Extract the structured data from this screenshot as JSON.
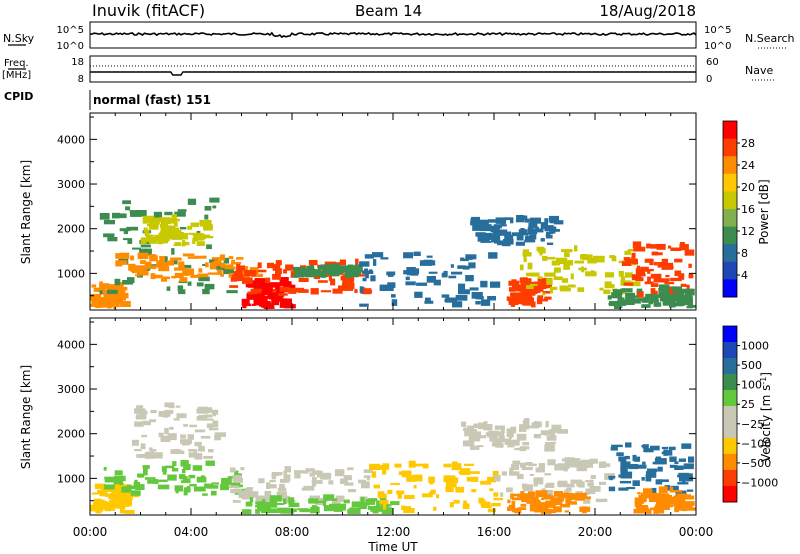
{
  "header": {
    "station": "Inuvik (fitACF)",
    "beam": "Beam 14",
    "date": "18/Aug/2018"
  },
  "noise_panel": {
    "left_label": "N.Sky",
    "left_ticks": [
      "10^5",
      "10^0"
    ],
    "right_ticks": [
      "10^5",
      "10^0"
    ],
    "right_label": "N.Search"
  },
  "freq_panel": {
    "left_label_top": "Freq.",
    "left_label_bottom": "[MHz]",
    "left_ticks": [
      "18",
      "8"
    ],
    "right_ticks": [
      "60",
      "0"
    ],
    "right_label": "Nave"
  },
  "cpid": {
    "label": "CPID",
    "value": "normal (fast) 151"
  },
  "chart_data": [
    {
      "type": "heatmap",
      "name": "power",
      "ylabel": "Slant Range [km]",
      "xlabel": "",
      "yticks": [
        "4000",
        "3000",
        "2000",
        "1000"
      ],
      "ylim": [
        180,
        4590
      ],
      "xlim": [
        0,
        24
      ],
      "colorbar": {
        "label": "Power [dB]",
        "ticks": [
          "28",
          "24",
          "20",
          "16",
          "12",
          "8",
          "4"
        ],
        "colors": [
          "#ff0000",
          "#ff3c00",
          "#ff8c00",
          "#ffc800",
          "#c8c800",
          "#80b050",
          "#3c8c50",
          "#286e9c",
          "#1e46b4",
          "#0000ff"
        ]
      },
      "regions": [
        {
          "t0": 0.0,
          "t1": 1.2,
          "r0": 200,
          "r1": 700,
          "c": "#ff8c00"
        },
        {
          "t0": 0.3,
          "t1": 5.5,
          "r0": 500,
          "r1": 2600,
          "c": "#3c8c50"
        },
        {
          "t0": 2.0,
          "t1": 4.5,
          "r0": 1600,
          "r1": 2200,
          "c": "#c8c800"
        },
        {
          "t0": 1.0,
          "t1": 6.5,
          "r0": 800,
          "r1": 1400,
          "c": "#ff8c00"
        },
        {
          "t0": 6.0,
          "t1": 7.8,
          "r0": 200,
          "r1": 800,
          "c": "#ff0000"
        },
        {
          "t0": 5.5,
          "t1": 10.8,
          "r0": 500,
          "r1": 1200,
          "c": "#ff3c00"
        },
        {
          "t0": 8.0,
          "t1": 10.5,
          "r0": 900,
          "r1": 1100,
          "c": "#3c8c50"
        },
        {
          "t0": 10.5,
          "t1": 16.0,
          "r0": 200,
          "r1": 1400,
          "c": "#286e9c"
        },
        {
          "t0": 15.0,
          "t1": 18.5,
          "r0": 1600,
          "r1": 2200,
          "c": "#286e9c"
        },
        {
          "t0": 16.5,
          "t1": 18.0,
          "r0": 200,
          "r1": 800,
          "c": "#ff3c00"
        },
        {
          "t0": 17.0,
          "t1": 21.5,
          "r0": 500,
          "r1": 1500,
          "c": "#c8c800"
        },
        {
          "t0": 21.0,
          "t1": 24.0,
          "r0": 400,
          "r1": 1600,
          "c": "#ff3c00"
        },
        {
          "t0": 20.5,
          "t1": 24.0,
          "r0": 200,
          "r1": 600,
          "c": "#3c8c50"
        }
      ]
    },
    {
      "type": "heatmap",
      "name": "velocity",
      "ylabel": "Slant Range [km]",
      "xlabel": "Time UT",
      "yticks": [
        "4000",
        "3000",
        "2000",
        "1000"
      ],
      "ylim": [
        180,
        4590
      ],
      "xlim": [
        0,
        24
      ],
      "xticks": [
        "00:00",
        "04:00",
        "08:00",
        "12:00",
        "16:00",
        "20:00",
        "00:00"
      ],
      "colorbar": {
        "label": "Velocity [m s",
        "label_sup": "-1",
        "label_close": "]",
        "ticks": [
          "1000",
          "500",
          "100",
          "25",
          "−25",
          "−100",
          "−500",
          "−1000"
        ],
        "colors": [
          "#0000ff",
          "#1e46b4",
          "#286e9c",
          "#3c8c50",
          "#64c83c",
          "#c8c8b4",
          "#c8c8b4",
          "#ffc800",
          "#ff8c00",
          "#ff3c00",
          "#ff0000"
        ]
      },
      "regions": [
        {
          "t0": 0.0,
          "t1": 1.5,
          "r0": 200,
          "r1": 800,
          "c": "#ffc800"
        },
        {
          "t0": 0.5,
          "t1": 6.0,
          "r0": 600,
          "r1": 1300,
          "c": "#64c83c"
        },
        {
          "t0": 1.5,
          "t1": 5.0,
          "r0": 1400,
          "r1": 2600,
          "c": "#c8c8b4"
        },
        {
          "t0": 5.5,
          "t1": 11.0,
          "r0": 400,
          "r1": 1200,
          "c": "#c8c8b4"
        },
        {
          "t0": 6.0,
          "t1": 12.0,
          "r0": 200,
          "r1": 500,
          "c": "#64c83c"
        },
        {
          "t0": 11.0,
          "t1": 16.0,
          "r0": 200,
          "r1": 1300,
          "c": "#ffc800"
        },
        {
          "t0": 14.5,
          "t1": 18.5,
          "r0": 1600,
          "r1": 2200,
          "c": "#c8c8b4"
        },
        {
          "t0": 16.0,
          "t1": 20.5,
          "r0": 400,
          "r1": 1400,
          "c": "#c8c8b4"
        },
        {
          "t0": 16.5,
          "t1": 19.5,
          "r0": 200,
          "r1": 600,
          "c": "#ff8c00"
        },
        {
          "t0": 20.5,
          "t1": 23.8,
          "r0": 500,
          "r1": 1700,
          "c": "#286e9c"
        },
        {
          "t0": 21.5,
          "t1": 24.0,
          "r0": 200,
          "r1": 700,
          "c": "#ff8c00"
        }
      ]
    }
  ]
}
